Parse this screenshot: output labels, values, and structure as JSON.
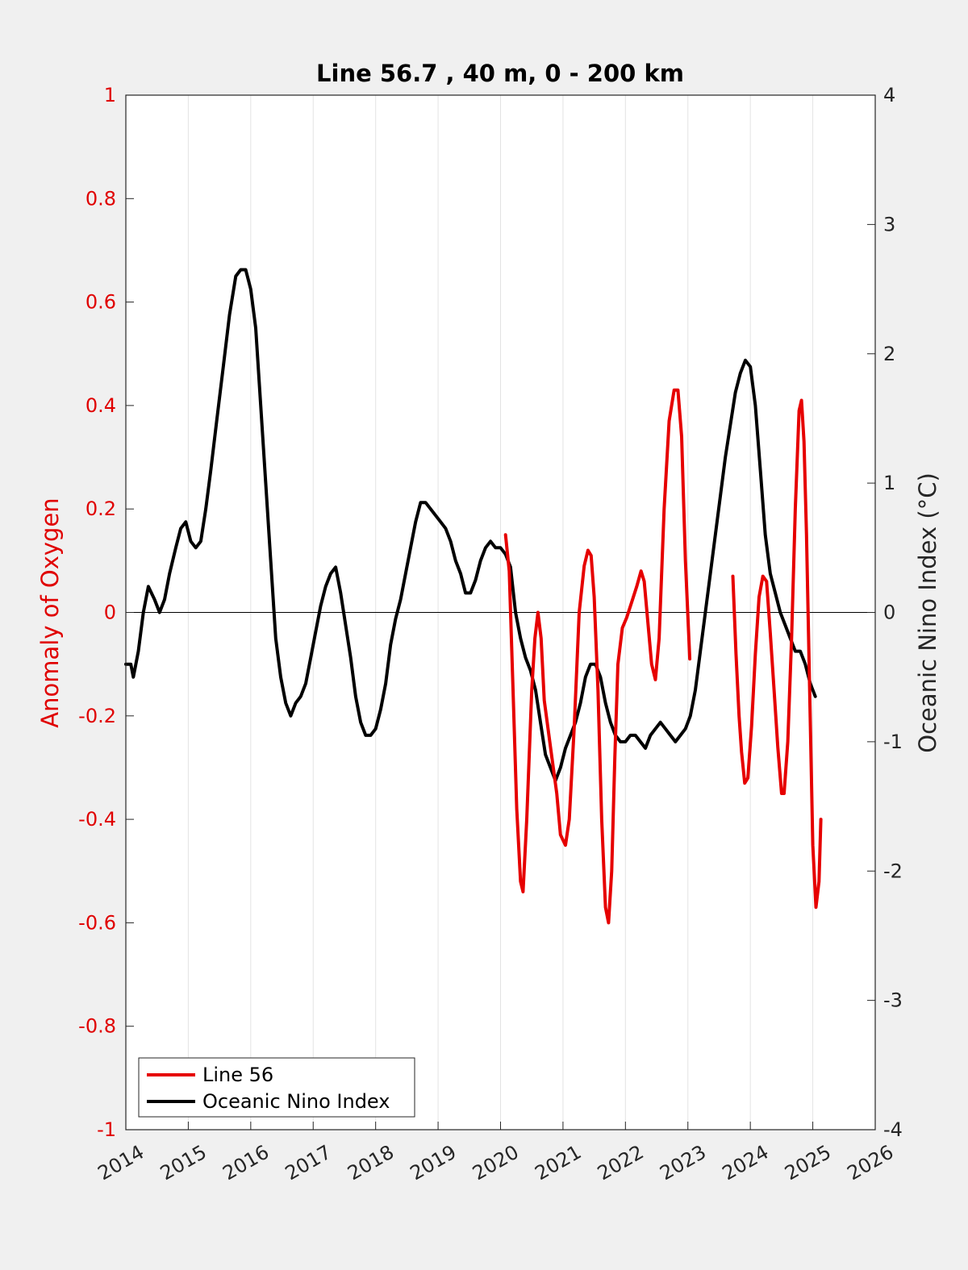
{
  "chart_data": {
    "type": "line",
    "title": "Line 56.7 , 40 m, 0 - 200 km",
    "xlabel": "",
    "ylabel_left": "Anomaly of Oxygen",
    "ylabel_right": "Oceanic Nino Index (°C)",
    "xlim": [
      2014,
      2026
    ],
    "ylim_left": [
      -1,
      1
    ],
    "ylim_right": [
      -4,
      4
    ],
    "x_ticks": [
      "2014",
      "2015",
      "2016",
      "2017",
      "2018",
      "2019",
      "2020",
      "2021",
      "2022",
      "2023",
      "2024",
      "2025",
      "2026"
    ],
    "y_ticks_left": [
      "1",
      "0.8",
      "0.6",
      "0.4",
      "0.2",
      "0",
      "-0.2",
      "-0.4",
      "-0.6",
      "-0.8",
      "-1"
    ],
    "y_ticks_right": [
      "4",
      "3",
      "2",
      "1",
      "0",
      "-1",
      "-2",
      "-3",
      "-4"
    ],
    "grid": "vertical",
    "legend": {
      "position": "bottom-left"
    },
    "colors": {
      "line56": "#e60000",
      "oni": "#000000"
    },
    "series": [
      {
        "name": "Line 56",
        "axis": "left",
        "segments": [
          [
            [
              2020.08,
              0.15
            ],
            [
              2020.14,
              0.08
            ],
            [
              2020.2,
              -0.15
            ],
            [
              2020.26,
              -0.38
            ],
            [
              2020.32,
              -0.52
            ],
            [
              2020.36,
              -0.54
            ],
            [
              2020.42,
              -0.4
            ],
            [
              2020.5,
              -0.15
            ],
            [
              2020.55,
              -0.05
            ],
            [
              2020.6,
              0.0
            ],
            [
              2020.65,
              -0.05
            ],
            [
              2020.7,
              -0.17
            ],
            [
              2020.8,
              -0.26
            ],
            [
              2020.9,
              -0.35
            ],
            [
              2020.96,
              -0.43
            ],
            [
              2021.04,
              -0.45
            ],
            [
              2021.1,
              -0.4
            ],
            [
              2021.18,
              -0.22
            ],
            [
              2021.26,
              0.0
            ],
            [
              2021.34,
              0.09
            ],
            [
              2021.4,
              0.12
            ],
            [
              2021.45,
              0.11
            ],
            [
              2021.5,
              0.03
            ],
            [
              2021.56,
              -0.15
            ],
            [
              2021.62,
              -0.4
            ],
            [
              2021.68,
              -0.57
            ],
            [
              2021.73,
              -0.6
            ],
            [
              2021.78,
              -0.5
            ],
            [
              2021.83,
              -0.28
            ],
            [
              2021.88,
              -0.1
            ],
            [
              2021.95,
              -0.03
            ],
            [
              2022.02,
              -0.01
            ],
            [
              2022.1,
              0.02
            ],
            [
              2022.18,
              0.05
            ],
            [
              2022.25,
              0.08
            ],
            [
              2022.3,
              0.06
            ],
            [
              2022.36,
              -0.02
            ],
            [
              2022.42,
              -0.1
            ],
            [
              2022.48,
              -0.13
            ],
            [
              2022.54,
              -0.05
            ],
            [
              2022.62,
              0.2
            ],
            [
              2022.7,
              0.37
            ],
            [
              2022.78,
              0.43
            ],
            [
              2022.84,
              0.43
            ],
            [
              2022.9,
              0.34
            ],
            [
              2022.96,
              0.1
            ],
            [
              2023.03,
              -0.09
            ]
          ],
          [
            [
              2023.72,
              0.07
            ],
            [
              2023.77,
              -0.08
            ],
            [
              2023.82,
              -0.2
            ],
            [
              2023.86,
              -0.27
            ],
            [
              2023.91,
              -0.33
            ],
            [
              2023.96,
              -0.32
            ],
            [
              2024.02,
              -0.22
            ],
            [
              2024.08,
              -0.08
            ],
            [
              2024.14,
              0.03
            ],
            [
              2024.2,
              0.07
            ],
            [
              2024.26,
              0.06
            ],
            [
              2024.32,
              -0.04
            ],
            [
              2024.38,
              -0.15
            ],
            [
              2024.44,
              -0.26
            ],
            [
              2024.5,
              -0.35
            ],
            [
              2024.54,
              -0.35
            ],
            [
              2024.6,
              -0.25
            ],
            [
              2024.66,
              -0.05
            ],
            [
              2024.72,
              0.2
            ],
            [
              2024.78,
              0.39
            ],
            [
              2024.82,
              0.41
            ],
            [
              2024.86,
              0.33
            ],
            [
              2024.9,
              0.15
            ],
            [
              2024.95,
              -0.15
            ],
            [
              2025.0,
              -0.45
            ],
            [
              2025.05,
              -0.57
            ],
            [
              2025.1,
              -0.52
            ],
            [
              2025.13,
              -0.4
            ]
          ]
        ]
      },
      {
        "name": "Oceanic Nino Index",
        "axis": "right",
        "points": [
          [
            2014.0,
            -0.4
          ],
          [
            2014.04,
            -0.4
          ],
          [
            2014.08,
            -0.4
          ],
          [
            2014.12,
            -0.5
          ],
          [
            2014.2,
            -0.3
          ],
          [
            2014.28,
            0.0
          ],
          [
            2014.36,
            0.2
          ],
          [
            2014.46,
            0.1
          ],
          [
            2014.54,
            0.0
          ],
          [
            2014.62,
            0.1
          ],
          [
            2014.7,
            0.3
          ],
          [
            2014.8,
            0.5
          ],
          [
            2014.88,
            0.65
          ],
          [
            2014.96,
            0.7
          ],
          [
            2015.04,
            0.55
          ],
          [
            2015.12,
            0.5
          ],
          [
            2015.2,
            0.55
          ],
          [
            2015.28,
            0.8
          ],
          [
            2015.36,
            1.1
          ],
          [
            2015.46,
            1.5
          ],
          [
            2015.56,
            1.9
          ],
          [
            2015.66,
            2.3
          ],
          [
            2015.76,
            2.6
          ],
          [
            2015.84,
            2.65
          ],
          [
            2015.92,
            2.65
          ],
          [
            2016.0,
            2.5
          ],
          [
            2016.08,
            2.2
          ],
          [
            2016.16,
            1.6
          ],
          [
            2016.24,
            1.0
          ],
          [
            2016.32,
            0.4
          ],
          [
            2016.4,
            -0.2
          ],
          [
            2016.48,
            -0.5
          ],
          [
            2016.56,
            -0.7
          ],
          [
            2016.64,
            -0.8
          ],
          [
            2016.72,
            -0.7
          ],
          [
            2016.8,
            -0.65
          ],
          [
            2016.88,
            -0.55
          ],
          [
            2016.96,
            -0.35
          ],
          [
            2017.04,
            -0.15
          ],
          [
            2017.12,
            0.05
          ],
          [
            2017.2,
            0.2
          ],
          [
            2017.28,
            0.3
          ],
          [
            2017.36,
            0.35
          ],
          [
            2017.44,
            0.15
          ],
          [
            2017.52,
            -0.1
          ],
          [
            2017.6,
            -0.35
          ],
          [
            2017.68,
            -0.65
          ],
          [
            2017.76,
            -0.85
          ],
          [
            2017.84,
            -0.95
          ],
          [
            2017.92,
            -0.95
          ],
          [
            2018.0,
            -0.9
          ],
          [
            2018.08,
            -0.75
          ],
          [
            2018.16,
            -0.55
          ],
          [
            2018.24,
            -0.25
          ],
          [
            2018.32,
            -0.05
          ],
          [
            2018.4,
            0.1
          ],
          [
            2018.48,
            0.3
          ],
          [
            2018.56,
            0.5
          ],
          [
            2018.64,
            0.7
          ],
          [
            2018.72,
            0.85
          ],
          [
            2018.8,
            0.85
          ],
          [
            2018.88,
            0.8
          ],
          [
            2018.96,
            0.75
          ],
          [
            2019.04,
            0.7
          ],
          [
            2019.12,
            0.65
          ],
          [
            2019.2,
            0.55
          ],
          [
            2019.28,
            0.4
          ],
          [
            2019.36,
            0.3
          ],
          [
            2019.44,
            0.15
          ],
          [
            2019.52,
            0.15
          ],
          [
            2019.6,
            0.25
          ],
          [
            2019.68,
            0.4
          ],
          [
            2019.76,
            0.5
          ],
          [
            2019.84,
            0.55
          ],
          [
            2019.92,
            0.5
          ],
          [
            2020.0,
            0.5
          ],
          [
            2020.08,
            0.45
          ],
          [
            2020.16,
            0.35
          ],
          [
            2020.24,
            0.0
          ],
          [
            2020.32,
            -0.2
          ],
          [
            2020.4,
            -0.35
          ],
          [
            2020.48,
            -0.45
          ],
          [
            2020.56,
            -0.6
          ],
          [
            2020.64,
            -0.85
          ],
          [
            2020.72,
            -1.1
          ],
          [
            2020.8,
            -1.2
          ],
          [
            2020.88,
            -1.3
          ],
          [
            2020.96,
            -1.2
          ],
          [
            2021.04,
            -1.05
          ],
          [
            2021.12,
            -0.95
          ],
          [
            2021.2,
            -0.85
          ],
          [
            2021.28,
            -0.7
          ],
          [
            2021.36,
            -0.5
          ],
          [
            2021.44,
            -0.4
          ],
          [
            2021.52,
            -0.4
          ],
          [
            2021.6,
            -0.5
          ],
          [
            2021.68,
            -0.7
          ],
          [
            2021.76,
            -0.85
          ],
          [
            2021.84,
            -0.95
          ],
          [
            2021.92,
            -1.0
          ],
          [
            2022.0,
            -1.0
          ],
          [
            2022.08,
            -0.95
          ],
          [
            2022.16,
            -0.95
          ],
          [
            2022.24,
            -1.0
          ],
          [
            2022.32,
            -1.05
          ],
          [
            2022.4,
            -0.95
          ],
          [
            2022.48,
            -0.9
          ],
          [
            2022.56,
            -0.85
          ],
          [
            2022.64,
            -0.9
          ],
          [
            2022.72,
            -0.95
          ],
          [
            2022.8,
            -1.0
          ],
          [
            2022.88,
            -0.95
          ],
          [
            2022.96,
            -0.9
          ],
          [
            2023.04,
            -0.8
          ],
          [
            2023.12,
            -0.6
          ],
          [
            2023.2,
            -0.3
          ],
          [
            2023.28,
            0.0
          ],
          [
            2023.36,
            0.3
          ],
          [
            2023.44,
            0.6
          ],
          [
            2023.52,
            0.9
          ],
          [
            2023.6,
            1.2
          ],
          [
            2023.68,
            1.45
          ],
          [
            2023.76,
            1.7
          ],
          [
            2023.84,
            1.85
          ],
          [
            2023.92,
            1.95
          ],
          [
            2024.0,
            1.9
          ],
          [
            2024.08,
            1.6
          ],
          [
            2024.16,
            1.1
          ],
          [
            2024.24,
            0.6
          ],
          [
            2024.32,
            0.3
          ],
          [
            2024.4,
            0.15
          ],
          [
            2024.48,
            0.0
          ],
          [
            2024.56,
            -0.1
          ],
          [
            2024.64,
            -0.2
          ],
          [
            2024.72,
            -0.3
          ],
          [
            2024.8,
            -0.3
          ],
          [
            2024.88,
            -0.4
          ],
          [
            2024.96,
            -0.55
          ],
          [
            2025.04,
            -0.65
          ]
        ]
      }
    ]
  }
}
